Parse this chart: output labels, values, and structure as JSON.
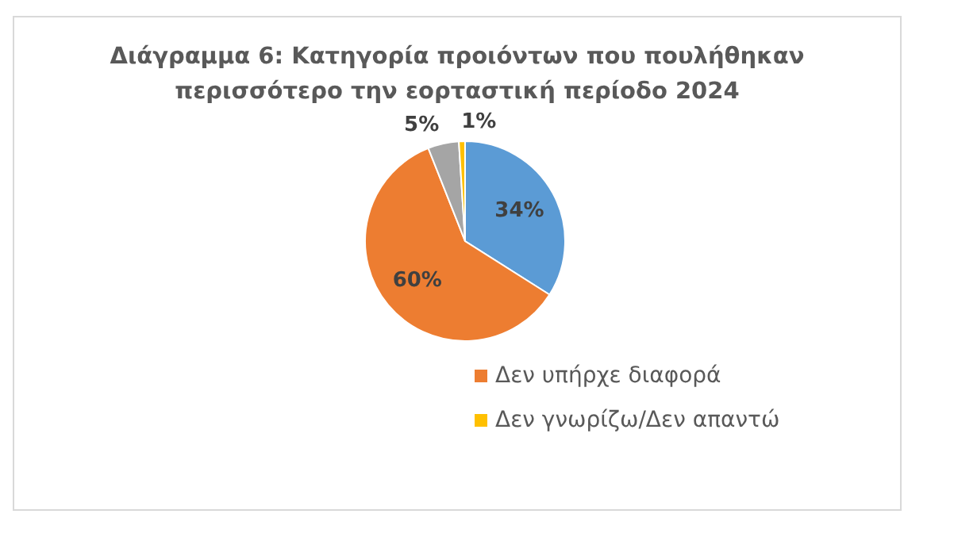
{
  "chart_data": {
    "type": "pie",
    "title": "Διάγραμμα 6: Κατηγορία προιόντων που πουλήθηκαν περισσότερο την εορταστική περίοδο 2024",
    "categories": [
      null,
      "Δεν υπήρχε διαφορά",
      null,
      "Δεν γνωρίζω/Δεν απαντώ"
    ],
    "values": [
      34,
      60,
      5,
      1
    ],
    "value_labels": [
      "34%",
      "60%",
      "5%",
      "1%"
    ],
    "colors": [
      "#5b9bd5",
      "#ed7d31",
      "#a5a5a5",
      "#ffc000"
    ],
    "legend": "bottom"
  }
}
